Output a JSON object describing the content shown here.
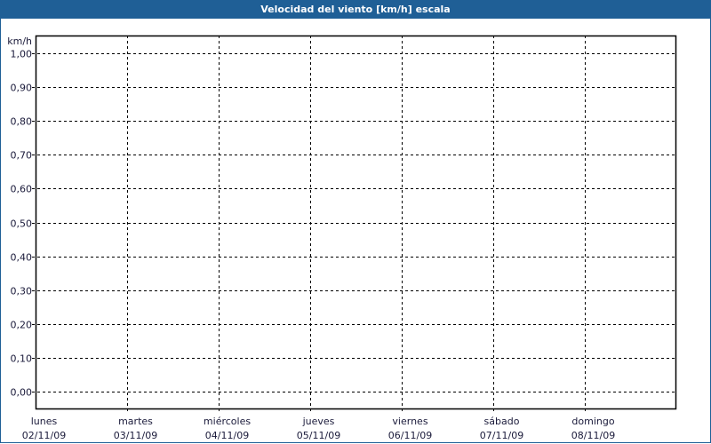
{
  "window": {
    "title": "Velocidad del viento [km/h] escala",
    "title_bar_color": "#1f5f96"
  },
  "chart_data": {
    "type": "line",
    "title": "Velocidad del viento [km/h] escala",
    "ylabel": "km/h",
    "ylim": [
      0,
      1
    ],
    "yticks": [
      "1,00",
      "0,90",
      "0,80",
      "0,70",
      "0,60",
      "0,50",
      "0,40",
      "0,30",
      "0,20",
      "0,10",
      "0,00"
    ],
    "categories": [
      {
        "day": "lunes",
        "date": "02/11/09"
      },
      {
        "day": "martes",
        "date": "03/11/09"
      },
      {
        "day": "miércoles",
        "date": "04/11/09"
      },
      {
        "day": "jueves",
        "date": "05/11/09"
      },
      {
        "day": "viernes",
        "date": "06/11/09"
      },
      {
        "day": "sábado",
        "date": "07/11/09"
      },
      {
        "day": "domingo",
        "date": "08/11/09"
      }
    ],
    "series": [],
    "grid": true
  }
}
